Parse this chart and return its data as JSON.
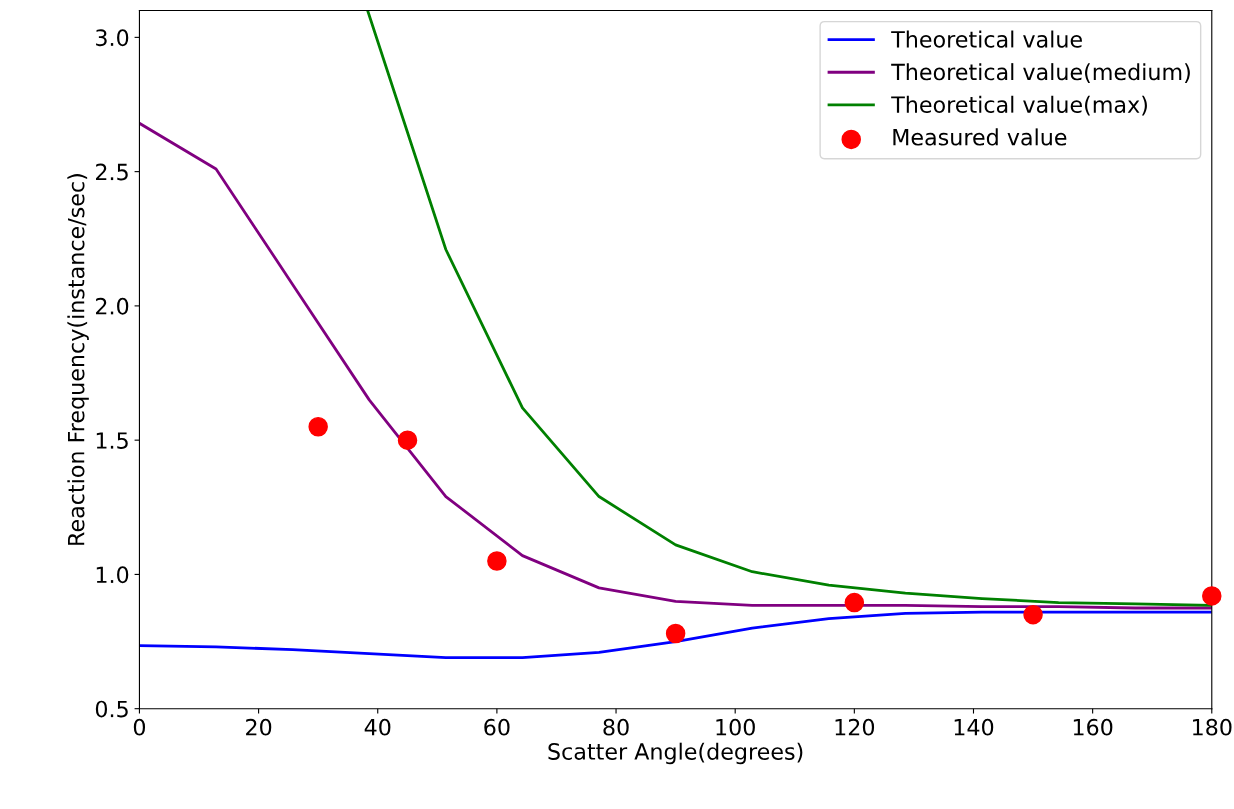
{
  "chart_data": {
    "type": "line",
    "xlabel": "Scatter Angle(degrees)",
    "ylabel": "Reaction Frequency(instance/sec)",
    "xlim": [
      0,
      180
    ],
    "xticks": [
      0,
      20,
      40,
      60,
      80,
      100,
      120,
      140,
      160,
      180
    ],
    "ylim": [
      0.5,
      3.1
    ],
    "yticks": [
      0.5,
      {
        "value": 1,
        "label": "1.0"
      },
      1.5,
      {
        "value": 2,
        "label": "2.0"
      },
      2.5,
      {
        "value": 3,
        "label": "3.0"
      }
    ],
    "grid": false,
    "legend": "top right",
    "x": [
      0,
      12.86,
      25.71,
      38.57,
      51.43,
      64.29,
      77.14,
      90,
      102.86,
      115.71,
      128.57,
      141.43,
      154.29,
      167.14,
      180
    ],
    "series": [
      {
        "name": "Theoretical value",
        "color": "#0000ff",
        "values": [
          0.735,
          0.73,
          0.72,
          0.705,
          0.69,
          0.69,
          0.71,
          0.75,
          0.8,
          0.835,
          0.855,
          0.86,
          0.86,
          0.86,
          0.86
        ]
      },
      {
        "name": "Theoretical value(medium)",
        "color": "#800080",
        "values": [
          2.68,
          2.51,
          2.08,
          1.65,
          1.29,
          1.07,
          0.95,
          0.9,
          0.885,
          0.885,
          0.885,
          0.88,
          0.88,
          0.875,
          0.875
        ]
      },
      {
        "name": "Theoretical value(max)",
        "color": "#008000",
        "x": [
          38.3,
          51.43,
          64.29,
          77.14,
          90,
          102.86,
          115.71,
          128.57,
          141.43,
          154.29,
          167.14,
          180
        ],
        "values": [
          3.1,
          2.21,
          1.62,
          1.29,
          1.11,
          1.01,
          0.96,
          0.93,
          0.91,
          0.895,
          0.89,
          0.885
        ]
      },
      {
        "name": "Measured value",
        "type": "scatter",
        "color": "#ff0000",
        "marker": "circle",
        "x": [
          30,
          45,
          60,
          90,
          120,
          150,
          180
        ],
        "values": [
          1.55,
          1.5,
          1.05,
          0.78,
          0.895,
          0.85,
          0.92
        ]
      }
    ]
  }
}
